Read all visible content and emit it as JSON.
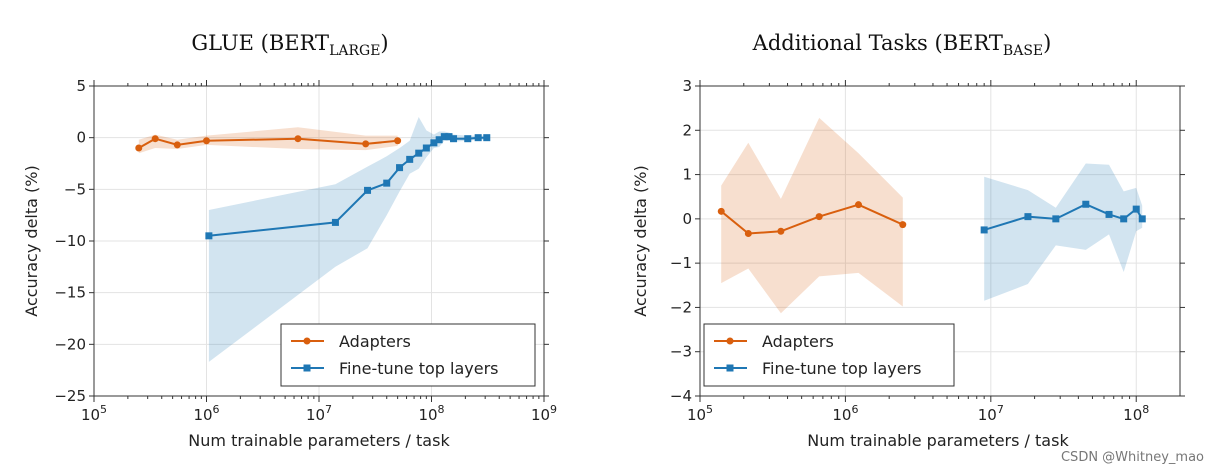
{
  "chart_data": [
    {
      "type": "line",
      "title": "GLUE (BERT",
      "title_sub": "LARGE",
      "title_close": ")",
      "xlabel": "Num trainable parameters / task",
      "ylabel": "Accuracy delta (%)",
      "xscale": "log",
      "xlim": [
        100000,
        1000000000
      ],
      "ylim": [
        -25,
        5
      ],
      "yticks": [
        5,
        0,
        -5,
        -10,
        -15,
        -20,
        -25
      ],
      "ytick_labels": [
        "5",
        "0",
        "−5",
        "−10",
        "−15",
        "−20",
        "−25"
      ],
      "xticks": [
        100000,
        1000000,
        10000000,
        100000000,
        1000000000
      ],
      "xtick_base": "10",
      "xtick_exponents": [
        "5",
        "6",
        "7",
        "8",
        "9"
      ],
      "grid": true,
      "legend_position": "lower-right",
      "series": [
        {
          "name": "Adapters",
          "color": "#d95f0e",
          "marker": "circle",
          "x": [
            250000,
            350000,
            550000,
            1000000,
            6500000,
            26000000,
            50000000
          ],
          "y": [
            -1.0,
            -0.1,
            -0.7,
            -0.3,
            -0.1,
            -0.6,
            -0.3
          ],
          "upper": [
            -0.2,
            0.3,
            -0.2,
            0.2,
            1.0,
            0.2,
            0.2
          ],
          "lower": [
            -1.5,
            -1.0,
            -1.1,
            -0.7,
            -1.1,
            -1.2,
            -0.8
          ]
        },
        {
          "name": "Fine-tune top layers",
          "color": "#1f77b4",
          "marker": "square",
          "x": [
            1050000,
            14000000,
            27000000,
            40000000,
            52000000,
            64000000,
            77000000,
            90000000,
            105000000,
            117000000,
            130000000,
            143000000,
            157000000,
            210000000,
            260000000,
            310000000
          ],
          "y": [
            -9.5,
            -8.2,
            -5.1,
            -4.4,
            -2.9,
            -2.1,
            -1.5,
            -1.0,
            -0.5,
            -0.2,
            0.1,
            0.1,
            -0.1,
            -0.1,
            0.0,
            0.0
          ],
          "upper": [
            -7.0,
            -4.5,
            -2.8,
            -1.8,
            -1.0,
            -0.3,
            2.0,
            0.7,
            0.3,
            0.6,
            0.6,
            0.5,
            0.3,
            0.2,
            0.2,
            0.2
          ],
          "lower": [
            -21.7,
            -12.5,
            -10.7,
            -7.5,
            -5.2,
            -3.5,
            -3.0,
            -1.9,
            -1.0,
            -0.9,
            -0.3,
            -0.3,
            -0.4,
            -0.3,
            -0.2,
            -0.2
          ]
        }
      ]
    },
    {
      "type": "line",
      "title": "Additional Tasks (BERT",
      "title_sub": "BASE",
      "title_close": ")",
      "xlabel": "Num trainable parameters / task",
      "ylabel": "Accuracy delta (%)",
      "xscale": "log",
      "xlim": [
        100000,
        200000000
      ],
      "ylim": [
        -4,
        3
      ],
      "yticks": [
        3,
        2,
        1,
        0,
        -1,
        -2,
        -3,
        -4
      ],
      "ytick_labels": [
        "3",
        "2",
        "1",
        "0",
        "−1",
        "−2",
        "−3",
        "−4"
      ],
      "xticks": [
        100000,
        1000000,
        10000000,
        100000000
      ],
      "xtick_base": "10",
      "xtick_exponents": [
        "5",
        "6",
        "7",
        "8"
      ],
      "grid": true,
      "legend_position": "lower-left",
      "series": [
        {
          "name": "Adapters",
          "color": "#d95f0e",
          "marker": "circle",
          "x": [
            140000,
            215000,
            360000,
            660000,
            1230000,
            2480000
          ],
          "y": [
            0.17,
            -0.33,
            -0.28,
            0.05,
            0.32,
            -0.13
          ],
          "upper": [
            0.75,
            1.72,
            0.45,
            2.28,
            1.48,
            0.48
          ],
          "lower": [
            -1.45,
            -1.12,
            -2.13,
            -1.3,
            -1.22,
            -1.98
          ]
        },
        {
          "name": "Fine-tune top layers",
          "color": "#1f77b4",
          "marker": "square",
          "x": [
            9000000,
            18000000,
            28000000,
            45000000,
            65000000,
            82000000,
            100000000,
            110000000
          ],
          "y": [
            -0.25,
            0.05,
            0.0,
            0.33,
            0.1,
            0.0,
            0.22,
            0.0
          ],
          "upper": [
            0.95,
            0.65,
            0.25,
            1.25,
            1.22,
            0.62,
            0.7,
            0.3
          ],
          "lower": [
            -1.85,
            -1.47,
            -0.6,
            -0.7,
            -0.35,
            -1.2,
            -0.28,
            -0.2
          ]
        }
      ]
    }
  ],
  "watermark": "CSDN @Whitney_mao"
}
